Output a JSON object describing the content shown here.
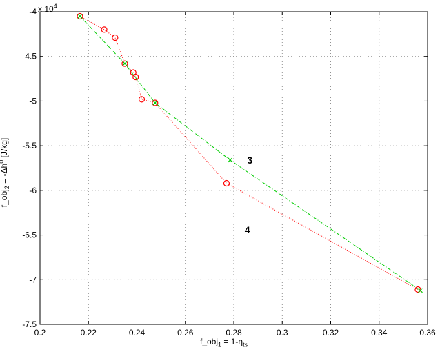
{
  "chart_data": {
    "type": "scatter",
    "xlabel": {
      "base": "f_obj",
      "sub": "1",
      "rest": " = 1-η",
      "sub2": "ts"
    },
    "ylabel": {
      "base": "f_obj",
      "sub": "2",
      "rest": " = -Δh",
      "sup": "0",
      "rest2": " [J/kg]"
    },
    "y_exponent": {
      "base": "x 10",
      "power": "4"
    },
    "xlim": [
      0.2,
      0.36
    ],
    "ylim": [
      -7.5,
      -4.0
    ],
    "xticks": [
      0.2,
      0.22,
      0.24,
      0.26,
      0.28,
      0.3,
      0.32,
      0.34,
      0.36
    ],
    "yticks": [
      -4,
      -4.5,
      -5,
      -5.5,
      -6,
      -6.5,
      -7,
      -7.5
    ],
    "xtick_labels": [
      "0.2",
      "0.22",
      "0.24",
      "0.26",
      "0.28",
      "0.3",
      "0.32",
      "0.34",
      "0.36"
    ],
    "ytick_labels": [
      "-4",
      "-4.5",
      "-5",
      "-5.5",
      "-6",
      "-6.5",
      "-7",
      "-7.5"
    ],
    "grid": true,
    "series": [
      {
        "marker": "circle",
        "color": "#ff0000",
        "line": "dotted",
        "x": [
          0.2165,
          0.2265,
          0.231,
          0.235,
          0.2385,
          0.2395,
          0.242,
          0.2475,
          0.277,
          0.356
        ],
        "y": [
          -4.05,
          -4.2,
          -4.29,
          -4.58,
          -4.68,
          -4.73,
          -4.98,
          -5.02,
          -5.92,
          -7.11
        ],
        "path_order": [
          0,
          1,
          2,
          3,
          4,
          5,
          6,
          7,
          8,
          9
        ]
      },
      {
        "marker": "x",
        "color": "#00cc00",
        "line": "dashdot",
        "x": [
          0.2165,
          0.235,
          0.2475,
          0.2785,
          0.357
        ],
        "y": [
          -4.05,
          -4.58,
          -5.02,
          -5.66,
          -7.12
        ]
      }
    ],
    "annotations": [
      {
        "text": "3",
        "x": 0.2855,
        "y": -5.66
      },
      {
        "text": "4",
        "x": 0.2845,
        "y": -6.44
      }
    ]
  }
}
